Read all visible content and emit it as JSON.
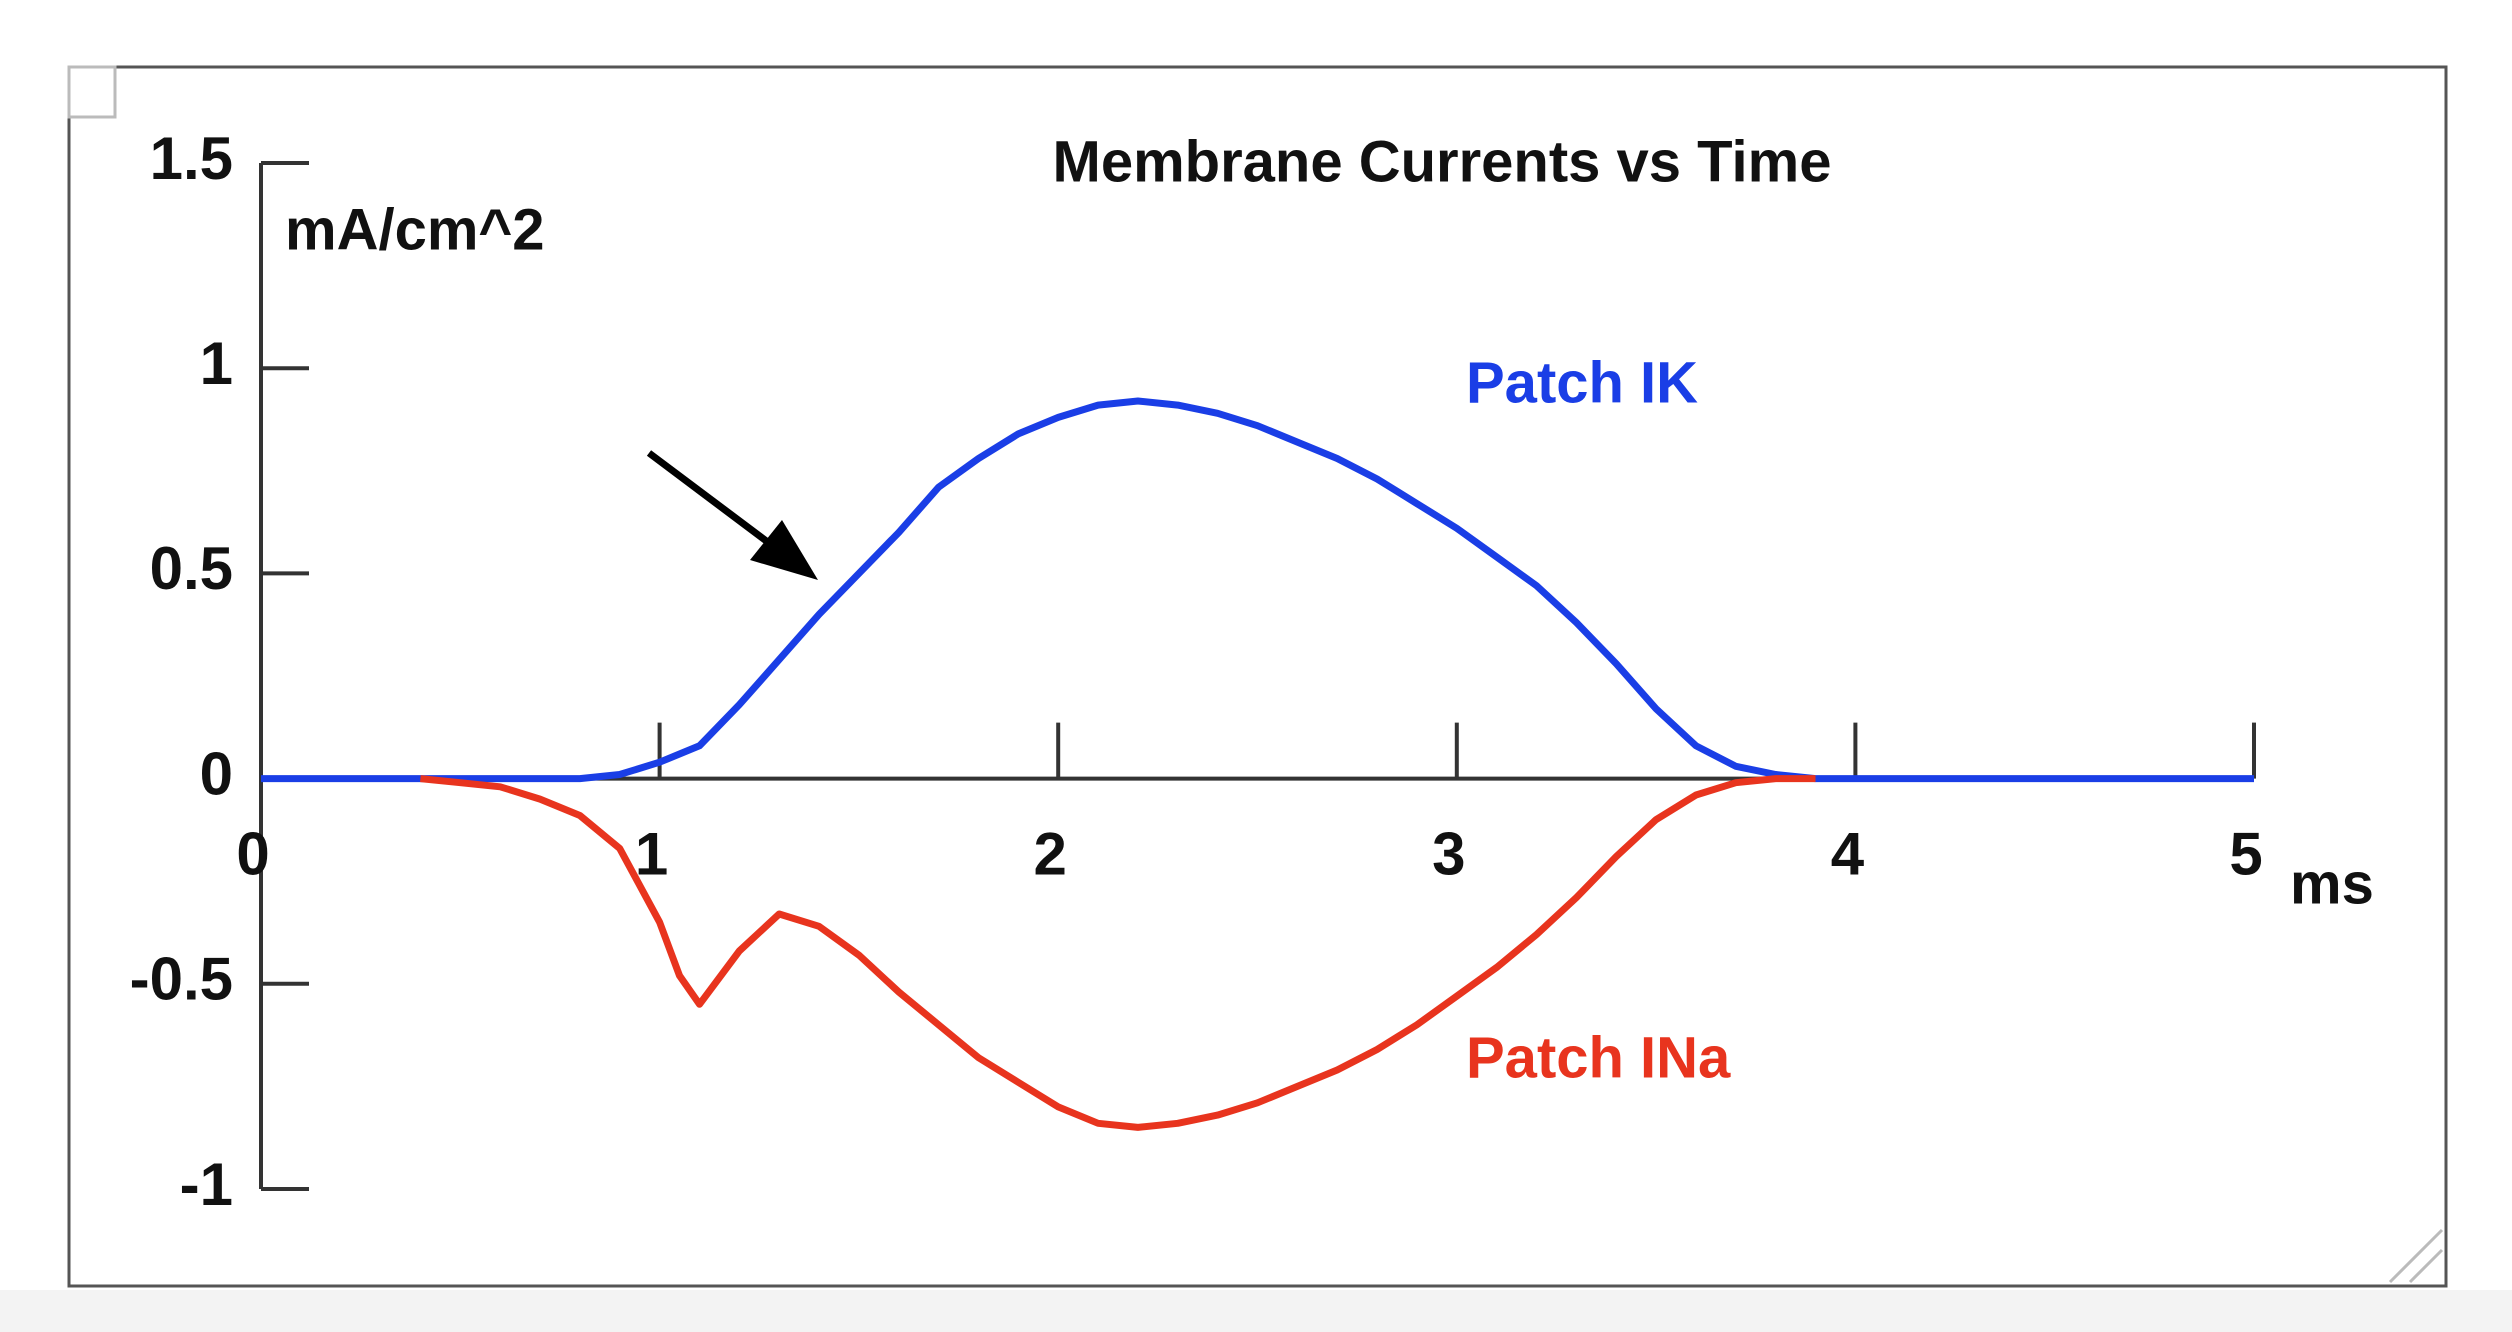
{
  "chart_data": {
    "type": "line",
    "title": "Membrane Currents  vs Time",
    "y_label": "mA/cm^2",
    "x_label": "ms",
    "x": [
      0,
      0.4,
      0.5,
      0.6,
      0.7,
      0.8,
      0.9,
      1.0,
      1.05,
      1.1,
      1.2,
      1.3,
      1.4,
      1.5,
      1.6,
      1.7,
      1.8,
      1.9,
      2.0,
      2.1,
      2.2,
      2.3,
      2.4,
      2.5,
      2.6,
      2.7,
      2.8,
      2.9,
      3.0,
      3.1,
      3.2,
      3.3,
      3.4,
      3.5,
      3.6,
      3.7,
      3.8,
      3.9,
      4.0,
      5.0
    ],
    "series": [
      {
        "name": "Patch IK",
        "color": "#1a3ee6",
        "values": [
          0,
          0,
          0,
          0,
          0,
          0,
          0.01,
          0.04,
          0.06,
          0.08,
          0.18,
          0.29,
          0.4,
          0.5,
          0.6,
          0.71,
          0.78,
          0.84,
          0.88,
          0.91,
          0.92,
          0.91,
          0.89,
          0.86,
          0.82,
          0.78,
          0.73,
          0.67,
          0.61,
          0.54,
          0.47,
          0.38,
          0.28,
          0.17,
          0.08,
          0.03,
          0.01,
          0,
          0,
          0
        ]
      },
      {
        "name": "Patch INa",
        "color": "#e8341e",
        "values": [
          null,
          0,
          -0.01,
          -0.02,
          -0.05,
          -0.09,
          -0.17,
          -0.35,
          -0.48,
          -0.55,
          -0.42,
          -0.33,
          -0.36,
          -0.43,
          -0.52,
          -0.6,
          -0.68,
          -0.74,
          -0.8,
          -0.84,
          -0.85,
          -0.84,
          -0.82,
          -0.79,
          -0.75,
          -0.71,
          -0.66,
          -0.6,
          -0.53,
          -0.46,
          -0.38,
          -0.29,
          -0.19,
          -0.1,
          -0.04,
          -0.01,
          0,
          0,
          null,
          null
        ]
      }
    ],
    "xlim": [
      0,
      5
    ],
    "xticks": [
      0,
      1,
      2,
      3,
      4,
      5
    ],
    "ylim": [
      -1,
      1.5
    ],
    "yticks": [
      -1,
      -0.5,
      0,
      0.5,
      1,
      1.5
    ],
    "grid": false
  }
}
